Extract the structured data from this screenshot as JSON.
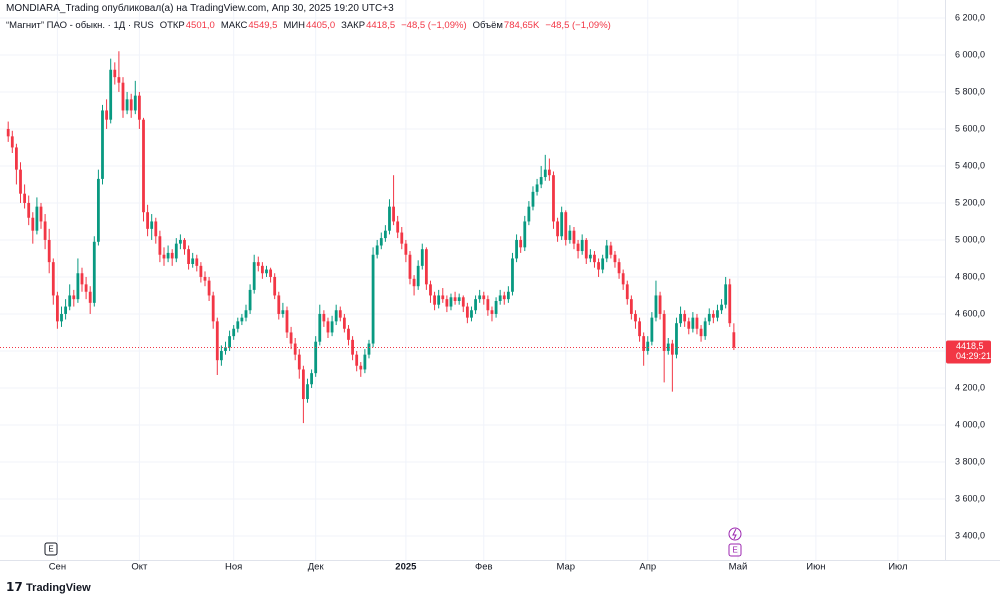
{
  "header": {
    "attribution": "MONDIARA_Trading опубликовал(а) на TradingView.com, Апр 30, 2025 19:20 UTC+3"
  },
  "footer": {
    "brand": "TradingView"
  },
  "chart_data": {
    "type": "candlestick",
    "title": "“Магнит” ПАО - обыкн. · 1Д · RUS",
    "legend": [
      {
        "label": "ОТКР",
        "value": "4501,0"
      },
      {
        "label": "МАКС",
        "value": "4549,5"
      },
      {
        "label": "МИН",
        "value": "4405,0"
      },
      {
        "label": "ЗАКР",
        "value": "4418,5"
      },
      {
        "label": "",
        "value": "−48,5 (−1,09%)"
      },
      {
        "label": "Объём",
        "value": "784,65K"
      },
      {
        "label": "",
        "value": "−48,5 (−1,09%)"
      }
    ],
    "last_price_label": "4418,5",
    "countdown": "04:29:21",
    "up_color": "#089981",
    "down_color": "#f23645",
    "grid": true,
    "xlim": [
      -2,
      228.5
    ],
    "xticks": [
      {
        "value": 12,
        "label": "Сен"
      },
      {
        "value": 32,
        "label": "Окт"
      },
      {
        "value": 55,
        "label": "Ноя"
      },
      {
        "value": 75,
        "label": "Дек"
      },
      {
        "value": 97,
        "label": "2025"
      },
      {
        "value": 116,
        "label": "Фев"
      },
      {
        "value": 136,
        "label": "Мар"
      },
      {
        "value": 156,
        "label": "Апр"
      },
      {
        "value": 178,
        "label": "Май"
      },
      {
        "value": 197,
        "label": "Июн"
      },
      {
        "value": 217,
        "label": "Июл"
      }
    ],
    "ylim": [
      3270,
      6297
    ],
    "yticks": [
      {
        "value": 3400,
        "label": "3 400,0"
      },
      {
        "value": 3600,
        "label": "3 600,0"
      },
      {
        "value": 3800,
        "label": "3 800,0"
      },
      {
        "value": 4000,
        "label": "4 000,0"
      },
      {
        "value": 4200,
        "label": "4 200,0"
      },
      {
        "value": 4400,
        "label": "4 400,0"
      },
      {
        "value": 4600,
        "label": "4 600,0"
      },
      {
        "value": 4800,
        "label": "4 800,0"
      },
      {
        "value": 5000,
        "label": "5 000,0"
      },
      {
        "value": 5200,
        "label": "5 200,0"
      },
      {
        "value": 5400,
        "label": "5 400,0"
      },
      {
        "value": 5600,
        "label": "5 600,0"
      },
      {
        "value": 5800,
        "label": "5 800,0"
      },
      {
        "value": 6000,
        "label": "6 000,0"
      },
      {
        "value": 6200,
        "label": "6 200,0"
      }
    ],
    "ohlc": [
      [
        5600,
        5640,
        5530,
        5560
      ],
      [
        5560,
        5590,
        5470,
        5500
      ],
      [
        5500,
        5520,
        5300,
        5380
      ],
      [
        5380,
        5420,
        5200,
        5250
      ],
      [
        5250,
        5300,
        5170,
        5200
      ],
      [
        5200,
        5240,
        5080,
        5120
      ],
      [
        5120,
        5150,
        4980,
        5050
      ],
      [
        5050,
        5230,
        5030,
        5180
      ],
      [
        5180,
        5200,
        5060,
        5100
      ],
      [
        5100,
        5140,
        4950,
        5000
      ],
      [
        5000,
        5060,
        4820,
        4880
      ],
      [
        4880,
        4900,
        4650,
        4700
      ],
      [
        4700,
        4720,
        4520,
        4560
      ],
      [
        4560,
        4640,
        4530,
        4600
      ],
      [
        4600,
        4680,
        4570,
        4640
      ],
      [
        4640,
        4760,
        4620,
        4700
      ],
      [
        4700,
        4730,
        4640,
        4680
      ],
      [
        4680,
        4900,
        4660,
        4820
      ],
      [
        4820,
        4850,
        4720,
        4760
      ],
      [
        4760,
        4800,
        4680,
        4720
      ],
      [
        4720,
        4750,
        4600,
        4660
      ],
      [
        4660,
        5020,
        4640,
        4990
      ],
      [
        4990,
        5380,
        4970,
        5330
      ],
      [
        5330,
        5730,
        5300,
        5700
      ],
      [
        5700,
        5760,
        5600,
        5650
      ],
      [
        5650,
        5980,
        5630,
        5920
      ],
      [
        5920,
        5960,
        5840,
        5880
      ],
      [
        5880,
        6020,
        5800,
        5850
      ],
      [
        5850,
        5880,
        5660,
        5700
      ],
      [
        5700,
        5800,
        5680,
        5760
      ],
      [
        5760,
        5790,
        5660,
        5700
      ],
      [
        5700,
        5860,
        5680,
        5780
      ],
      [
        5780,
        5800,
        5600,
        5650
      ],
      [
        5650,
        5660,
        5100,
        5150
      ],
      [
        5150,
        5190,
        5020,
        5060
      ],
      [
        5060,
        5140,
        5000,
        5100
      ],
      [
        5100,
        5120,
        4980,
        5020
      ],
      [
        5020,
        5050,
        4880,
        4920
      ],
      [
        4920,
        4960,
        4860,
        4900
      ],
      [
        4900,
        4970,
        4880,
        4930
      ],
      [
        4930,
        4950,
        4860,
        4900
      ],
      [
        4900,
        5010,
        4880,
        4980
      ],
      [
        4980,
        5030,
        4950,
        5000
      ],
      [
        5000,
        5010,
        4920,
        4950
      ],
      [
        4950,
        4970,
        4840,
        4870
      ],
      [
        4870,
        4930,
        4850,
        4900
      ],
      [
        4900,
        4920,
        4830,
        4860
      ],
      [
        4860,
        4880,
        4770,
        4800
      ],
      [
        4800,
        4830,
        4750,
        4780
      ],
      [
        4780,
        4800,
        4670,
        4700
      ],
      [
        4700,
        4720,
        4520,
        4560
      ],
      [
        4560,
        4580,
        4270,
        4350
      ],
      [
        4350,
        4430,
        4320,
        4400
      ],
      [
        4400,
        4450,
        4380,
        4420
      ],
      [
        4420,
        4510,
        4400,
        4480
      ],
      [
        4480,
        4540,
        4460,
        4520
      ],
      [
        4520,
        4580,
        4500,
        4560
      ],
      [
        4560,
        4600,
        4540,
        4580
      ],
      [
        4580,
        4650,
        4560,
        4620
      ],
      [
        4620,
        4760,
        4600,
        4730
      ],
      [
        4730,
        4920,
        4710,
        4880
      ],
      [
        4880,
        4910,
        4830,
        4860
      ],
      [
        4860,
        4880,
        4790,
        4820
      ],
      [
        4820,
        4860,
        4800,
        4840
      ],
      [
        4840,
        4850,
        4770,
        4800
      ],
      [
        4800,
        4820,
        4680,
        4700
      ],
      [
        4700,
        4720,
        4570,
        4600
      ],
      [
        4600,
        4660,
        4580,
        4620
      ],
      [
        4620,
        4640,
        4470,
        4500
      ],
      [
        4500,
        4530,
        4410,
        4440
      ],
      [
        4440,
        4470,
        4350,
        4380
      ],
      [
        4380,
        4410,
        4250,
        4300
      ],
      [
        4300,
        4320,
        4010,
        4140
      ],
      [
        4140,
        4250,
        4120,
        4220
      ],
      [
        4220,
        4300,
        4200,
        4280
      ],
      [
        4280,
        4480,
        4260,
        4450
      ],
      [
        4450,
        4650,
        4430,
        4600
      ],
      [
        4600,
        4620,
        4530,
        4560
      ],
      [
        4560,
        4580,
        4470,
        4500
      ],
      [
        4500,
        4590,
        4480,
        4560
      ],
      [
        4560,
        4650,
        4540,
        4620
      ],
      [
        4620,
        4640,
        4560,
        4580
      ],
      [
        4580,
        4600,
        4500,
        4520
      ],
      [
        4520,
        4540,
        4430,
        4460
      ],
      [
        4460,
        4480,
        4350,
        4380
      ],
      [
        4380,
        4400,
        4290,
        4320
      ],
      [
        4320,
        4340,
        4260,
        4300
      ],
      [
        4300,
        4410,
        4280,
        4380
      ],
      [
        4380,
        4460,
        4360,
        4440
      ],
      [
        4440,
        4960,
        4420,
        4920
      ],
      [
        4920,
        5000,
        4900,
        4970
      ],
      [
        4970,
        5040,
        4950,
        5010
      ],
      [
        5010,
        5080,
        4990,
        5050
      ],
      [
        5050,
        5220,
        5030,
        5180
      ],
      [
        5180,
        5350,
        5080,
        5100
      ],
      [
        5100,
        5130,
        5010,
        5040
      ],
      [
        5040,
        5070,
        4950,
        4980
      ],
      [
        4980,
        5000,
        4880,
        4920
      ],
      [
        4920,
        4940,
        4760,
        4790
      ],
      [
        4790,
        4810,
        4700,
        4750
      ],
      [
        4750,
        4890,
        4730,
        4860
      ],
      [
        4860,
        4980,
        4840,
        4950
      ],
      [
        4950,
        4960,
        4730,
        4760
      ],
      [
        4760,
        4780,
        4660,
        4700
      ],
      [
        4700,
        4720,
        4620,
        4650
      ],
      [
        4650,
        4730,
        4630,
        4700
      ],
      [
        4700,
        4740,
        4660,
        4680
      ],
      [
        4680,
        4700,
        4610,
        4640
      ],
      [
        4640,
        4710,
        4620,
        4690
      ],
      [
        4690,
        4720,
        4650,
        4670
      ],
      [
        4670,
        4710,
        4650,
        4690
      ],
      [
        4690,
        4700,
        4610,
        4640
      ],
      [
        4640,
        4660,
        4550,
        4580
      ],
      [
        4580,
        4640,
        4560,
        4620
      ],
      [
        4620,
        4700,
        4600,
        4680
      ],
      [
        4680,
        4730,
        4660,
        4700
      ],
      [
        4700,
        4720,
        4650,
        4680
      ],
      [
        4680,
        4700,
        4590,
        4620
      ],
      [
        4620,
        4640,
        4560,
        4600
      ],
      [
        4600,
        4690,
        4580,
        4670
      ],
      [
        4670,
        4730,
        4650,
        4700
      ],
      [
        4700,
        4720,
        4650,
        4680
      ],
      [
        4680,
        4750,
        4660,
        4720
      ],
      [
        4720,
        4930,
        4700,
        4900
      ],
      [
        4900,
        5030,
        4880,
        5000
      ],
      [
        5000,
        5020,
        4930,
        4960
      ],
      [
        4960,
        5130,
        4940,
        5100
      ],
      [
        5100,
        5210,
        5080,
        5180
      ],
      [
        5180,
        5290,
        5160,
        5260
      ],
      [
        5260,
        5330,
        5240,
        5300
      ],
      [
        5300,
        5400,
        5280,
        5340
      ],
      [
        5340,
        5460,
        5320,
        5380
      ],
      [
        5380,
        5440,
        5320,
        5350
      ],
      [
        5350,
        5370,
        5060,
        5100
      ],
      [
        5100,
        5120,
        4990,
        5020
      ],
      [
        5020,
        5180,
        5000,
        5150
      ],
      [
        5150,
        5160,
        4970,
        5000
      ],
      [
        5000,
        5080,
        4980,
        5050
      ],
      [
        5050,
        5070,
        4950,
        4980
      ],
      [
        4980,
        5000,
        4900,
        4940
      ],
      [
        4940,
        5030,
        4920,
        5000
      ],
      [
        5000,
        5010,
        4870,
        4900
      ],
      [
        4900,
        4950,
        4880,
        4920
      ],
      [
        4920,
        4940,
        4850,
        4880
      ],
      [
        4880,
        4900,
        4800,
        4840
      ],
      [
        4840,
        4920,
        4820,
        4900
      ],
      [
        4900,
        5000,
        4880,
        4970
      ],
      [
        4970,
        4990,
        4900,
        4920
      ],
      [
        4920,
        4940,
        4850,
        4880
      ],
      [
        4880,
        4900,
        4790,
        4820
      ],
      [
        4820,
        4840,
        4730,
        4760
      ],
      [
        4760,
        4780,
        4650,
        4680
      ],
      [
        4680,
        4700,
        4570,
        4600
      ],
      [
        4600,
        4620,
        4520,
        4560
      ],
      [
        4560,
        4580,
        4450,
        4480
      ],
      [
        4480,
        4500,
        4320,
        4400
      ],
      [
        4400,
        4480,
        4380,
        4450
      ],
      [
        4450,
        4610,
        4430,
        4580
      ],
      [
        4580,
        4780,
        4560,
        4700
      ],
      [
        4700,
        4720,
        4570,
        4600
      ],
      [
        4600,
        4620,
        4230,
        4400
      ],
      [
        4400,
        4470,
        4380,
        4440
      ],
      [
        4440,
        4460,
        4180,
        4380
      ],
      [
        4380,
        4580,
        4360,
        4550
      ],
      [
        4550,
        4640,
        4530,
        4600
      ],
      [
        4600,
        4620,
        4530,
        4560
      ],
      [
        4560,
        4580,
        4490,
        4520
      ],
      [
        4520,
        4610,
        4500,
        4580
      ],
      [
        4580,
        4600,
        4490,
        4520
      ],
      [
        4520,
        4540,
        4450,
        4480
      ],
      [
        4480,
        4580,
        4460,
        4560
      ],
      [
        4560,
        4630,
        4540,
        4600
      ],
      [
        4600,
        4620,
        4550,
        4580
      ],
      [
        4580,
        4650,
        4560,
        4620
      ],
      [
        4620,
        4680,
        4600,
        4650
      ],
      [
        4650,
        4800,
        4630,
        4760
      ],
      [
        4760,
        4790,
        4530,
        4550
      ],
      [
        4501,
        4549.5,
        4405,
        4418.5
      ]
    ]
  }
}
